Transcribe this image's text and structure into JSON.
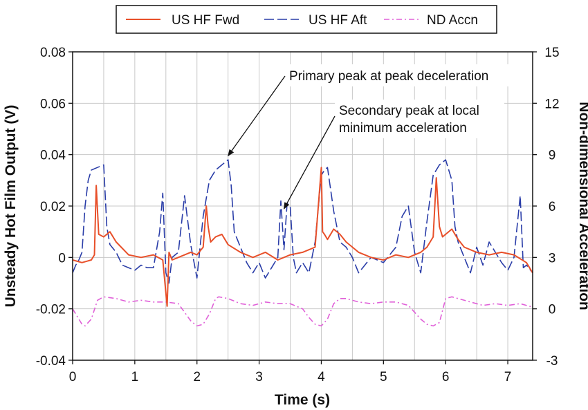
{
  "chart_data": {
    "type": "line",
    "title": "",
    "xlabel": "Time (s)",
    "ylabel_left": "Unsteady Hot Film Output (V)",
    "ylabel_right": "Non-dimensional Acceleration",
    "xlim": [
      0,
      7.4
    ],
    "ylim_left": [
      -0.04,
      0.08
    ],
    "ylim_right": [
      -3,
      15
    ],
    "x_ticks": [
      "0",
      "1",
      "2",
      "3",
      "4",
      "5",
      "6",
      "7"
    ],
    "y_left_ticks": [
      "-0.04",
      "-0.02",
      "0",
      "0.02",
      "0.04",
      "0.06",
      "0.08"
    ],
    "y_right_ticks": [
      "-3",
      "0",
      "3",
      "6",
      "9",
      "12",
      "15"
    ],
    "grid": true,
    "legend_position": "top",
    "series": [
      {
        "name": "US HF Fwd",
        "axis": "left",
        "color": "#e8502a",
        "style": "solid",
        "x": [
          0,
          0.15,
          0.3,
          0.35,
          0.38,
          0.42,
          0.5,
          0.6,
          0.7,
          0.9,
          1.1,
          1.3,
          1.45,
          1.52,
          1.55,
          1.6,
          1.7,
          1.9,
          2.0,
          2.1,
          2.15,
          2.18,
          2.22,
          2.3,
          2.4,
          2.5,
          2.7,
          2.9,
          3.1,
          3.3,
          3.5,
          3.7,
          3.9,
          4.0,
          4.02,
          4.05,
          4.1,
          4.2,
          4.3,
          4.4,
          4.6,
          4.8,
          5.0,
          5.2,
          5.4,
          5.6,
          5.7,
          5.8,
          5.85,
          5.9,
          5.95,
          6.0,
          6.1,
          6.2,
          6.3,
          6.5,
          6.7,
          6.9,
          7.1,
          7.3,
          7.4
        ],
        "y": [
          -0.001,
          -0.002,
          -0.001,
          0.001,
          0.028,
          0.009,
          0.008,
          0.01,
          0.006,
          0.001,
          0.0,
          0.001,
          -0.001,
          -0.019,
          0.002,
          -0.001,
          0.0,
          0.002,
          0.001,
          0.004,
          0.02,
          0.012,
          0.006,
          0.008,
          0.009,
          0.005,
          0.002,
          0.0,
          0.002,
          -0.001,
          0.001,
          0.002,
          0.004,
          0.035,
          0.01,
          0.009,
          0.007,
          0.011,
          0.009,
          0.006,
          0.002,
          0.0,
          -0.001,
          0.001,
          0.0,
          0.002,
          0.004,
          0.008,
          0.031,
          0.012,
          0.008,
          0.009,
          0.011,
          0.007,
          0.004,
          0.002,
          0.001,
          0.002,
          0.001,
          -0.002,
          -0.006
        ]
      },
      {
        "name": "US HF Aft",
        "axis": "left",
        "color": "#2a3da8",
        "style": "dash",
        "x": [
          0,
          0.05,
          0.1,
          0.15,
          0.2,
          0.25,
          0.3,
          0.4,
          0.5,
          0.55,
          0.6,
          0.7,
          0.8,
          0.9,
          1.0,
          1.1,
          1.2,
          1.3,
          1.4,
          1.45,
          1.5,
          1.55,
          1.6,
          1.7,
          1.8,
          1.9,
          2.0,
          2.1,
          2.2,
          2.3,
          2.4,
          2.5,
          2.55,
          2.6,
          2.7,
          2.8,
          2.9,
          3.0,
          3.1,
          3.2,
          3.3,
          3.35,
          3.4,
          3.45,
          3.5,
          3.55,
          3.6,
          3.7,
          3.8,
          3.9,
          4.0,
          4.05,
          4.1,
          4.2,
          4.3,
          4.4,
          4.5,
          4.6,
          4.8,
          5.0,
          5.2,
          5.3,
          5.4,
          5.5,
          5.6,
          5.7,
          5.8,
          5.9,
          6.0,
          6.1,
          6.15,
          6.2,
          6.3,
          6.4,
          6.5,
          6.6,
          6.7,
          6.8,
          6.9,
          7.0,
          7.1,
          7.2,
          7.25,
          7.3,
          7.4
        ],
        "y": [
          -0.006,
          -0.003,
          -0.001,
          0.002,
          0.02,
          0.03,
          0.034,
          0.035,
          0.036,
          0.012,
          0.005,
          0.002,
          -0.003,
          -0.004,
          -0.005,
          -0.003,
          -0.004,
          -0.004,
          0.01,
          0.025,
          -0.006,
          -0.01,
          0.0,
          0.002,
          0.024,
          0.005,
          -0.008,
          0.016,
          0.03,
          0.034,
          0.036,
          0.038,
          0.028,
          0.01,
          0.004,
          -0.002,
          -0.006,
          -0.002,
          -0.008,
          -0.004,
          0.0,
          0.022,
          0.003,
          0.021,
          0.02,
          0.0,
          -0.006,
          -0.002,
          -0.006,
          0.006,
          0.032,
          0.034,
          0.035,
          0.018,
          0.006,
          0.004,
          0.0,
          -0.006,
          0.0,
          -0.002,
          0.004,
          0.016,
          0.02,
          0.002,
          -0.006,
          0.014,
          0.032,
          0.036,
          0.038,
          0.03,
          0.012,
          0.006,
          0.0,
          -0.006,
          0.004,
          -0.003,
          0.006,
          0.002,
          -0.002,
          -0.005,
          0.0,
          0.024,
          -0.004,
          -0.003,
          -0.006
        ]
      },
      {
        "name": "ND Accn",
        "axis": "right",
        "color": "#e060d8",
        "style": "dash-dot",
        "x": [
          0,
          0.05,
          0.15,
          0.2,
          0.3,
          0.4,
          0.5,
          0.7,
          0.9,
          1.1,
          1.3,
          1.5,
          1.7,
          1.8,
          1.9,
          2.0,
          2.1,
          2.2,
          2.3,
          2.35,
          2.5,
          2.7,
          2.9,
          3.1,
          3.3,
          3.5,
          3.7,
          3.8,
          3.9,
          4.0,
          4.1,
          4.2,
          4.3,
          4.4,
          4.6,
          4.8,
          5.0,
          5.2,
          5.4,
          5.5,
          5.6,
          5.7,
          5.8,
          5.9,
          6.0,
          6.1,
          6.2,
          6.4,
          6.6,
          6.8,
          7.0,
          7.2,
          7.4
        ],
        "y": [
          0.0,
          -0.3,
          -0.9,
          -1.0,
          -0.6,
          0.5,
          0.7,
          0.6,
          0.4,
          0.5,
          0.4,
          0.4,
          0.3,
          -0.2,
          -0.7,
          -1.0,
          -0.9,
          -0.3,
          0.6,
          0.7,
          0.6,
          0.3,
          0.2,
          0.4,
          0.3,
          0.3,
          0.0,
          -0.5,
          -0.9,
          -1.0,
          -0.6,
          0.3,
          0.6,
          0.6,
          0.4,
          0.3,
          0.4,
          0.4,
          0.2,
          -0.2,
          -0.6,
          -0.9,
          -1.0,
          -0.8,
          0.6,
          0.7,
          0.6,
          0.4,
          0.2,
          0.3,
          0.2,
          0.3,
          0.1
        ]
      }
    ],
    "annotations": [
      {
        "lines": [
          "Primary peak at peak deceleration"
        ],
        "arrow_tip": {
          "x": 2.5,
          "y": 0.039
        }
      },
      {
        "lines": [
          "Secondary peak at local",
          "minimum acceleration"
        ],
        "arrow_tip": {
          "x": 3.4,
          "y": 0.02
        }
      }
    ]
  }
}
